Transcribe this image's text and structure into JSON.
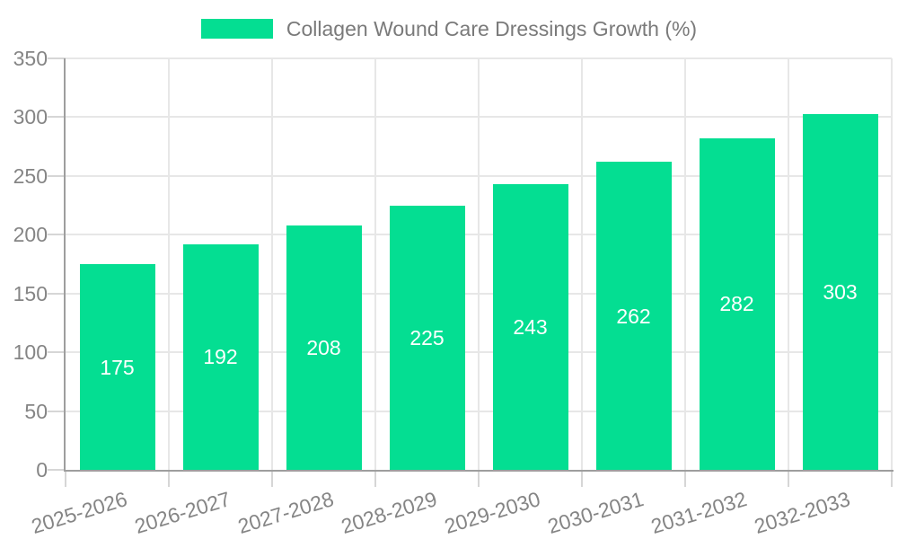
{
  "legend": {
    "label": "Collagen Wound Care Dressings Growth (%)"
  },
  "chart_data": {
    "type": "bar",
    "title": "Collagen Wound Care Dressings Growth (%)",
    "categories": [
      "2025-2026",
      "2026-2027",
      "2027-2028",
      "2028-2029",
      "2029-2030",
      "2030-2031",
      "2031-2032",
      "2032-2033"
    ],
    "values": [
      175,
      192,
      208,
      225,
      243,
      262,
      282,
      303
    ],
    "xlabel": "",
    "ylabel": "",
    "ylim": [
      0,
      350
    ],
    "yticks": [
      0,
      50,
      100,
      150,
      200,
      250,
      300,
      350
    ],
    "grid": true,
    "legend_position": "top-center",
    "value_labels": "inside-center",
    "x_label_rotation_deg": -17,
    "colors": {
      "bar": "#04DE92",
      "value_label": "#FFFFFF",
      "axis_line": "#9E9E9E",
      "gridline": "#E7E7E7",
      "tick_mark": "#D6D6D6",
      "tick_text": "#858585",
      "legend_text": "#7A7A7A",
      "background": "#FFFFFF"
    }
  }
}
